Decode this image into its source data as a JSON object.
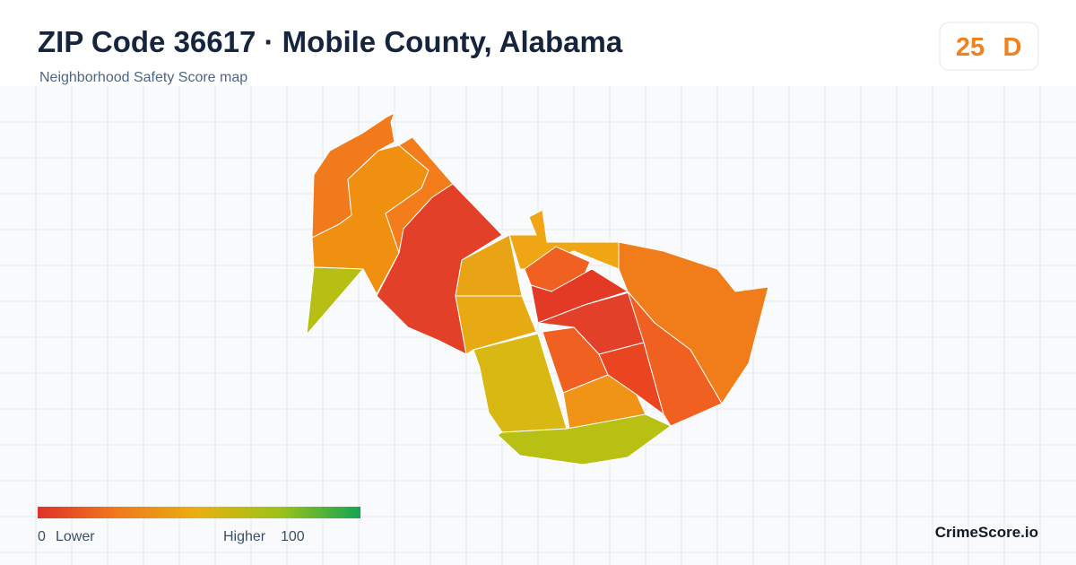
{
  "header": {
    "title": "ZIP Code 36617 · Mobile County, Alabama",
    "subtitle": "Neighborhood Safety Score map"
  },
  "score": {
    "value": 25,
    "grade": "D"
  },
  "legend": {
    "min": 0,
    "min_label": "Lower",
    "max_label": "Higher",
    "max": 100
  },
  "brand": "CrimeScore.io"
}
